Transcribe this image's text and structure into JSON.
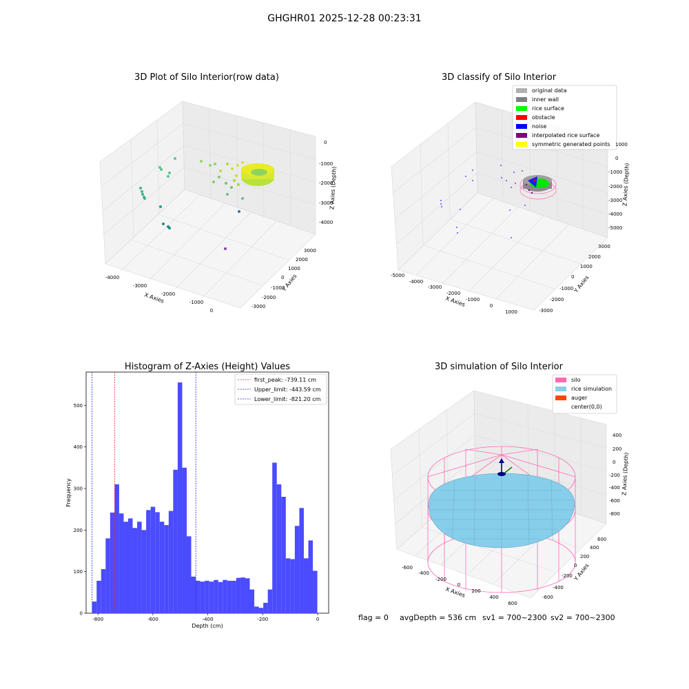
{
  "suptitle": "GHGHR01 2025-12-28 00:23:31",
  "footer": {
    "flag": "flag = 0",
    "avg": "avgDepth = 536 cm",
    "sv1": "sv1 = 700~2300",
    "sv2": "sv2 = 700~2300"
  },
  "colors": {
    "histogram": "#4b4bff",
    "first_peak": "#e02020",
    "limits": "#2020e0",
    "silo": "#ff69b4",
    "rice": "#87ceeb",
    "auger": "#ff4500"
  },
  "chart_data": [
    {
      "type": "scatter",
      "title": "3D Plot of Silo Interior(row data)",
      "xlabel": "X Axies",
      "ylabel": "Y Axies",
      "zlabel": "Z Axies (Depth)",
      "x_ticks": [
        "-4000",
        "-3000",
        "-2000",
        "-1000",
        "0"
      ],
      "y_ticks": [
        "-3000",
        "-2000",
        "-1000",
        "0",
        "1000",
        "2000",
        "3000"
      ],
      "z_ticks": [
        "0",
        "-1000",
        "-2000",
        "-3000",
        "-4000"
      ]
    },
    {
      "type": "scatter",
      "title": "3D classify of Silo Interior",
      "xlabel": "X Axies",
      "ylabel": "Y Axies",
      "zlabel": "Z Axies (Depth)",
      "x_ticks": [
        "-5000",
        "-4000",
        "-3000",
        "-2000",
        "-1000",
        "0",
        "1000"
      ],
      "y_ticks": [
        "-3000",
        "-2000",
        "-1000",
        "0",
        "1000",
        "2000",
        "3000"
      ],
      "z_ticks": [
        "1000",
        "0",
        "-1000",
        "-2000",
        "-3000",
        "-4000",
        "-5000"
      ],
      "legend": [
        {
          "label": "original data",
          "color": "#b0b0b0"
        },
        {
          "label": "inner wall",
          "color": "#808080"
        },
        {
          "label": "rice surface",
          "color": "#00ff00"
        },
        {
          "label": "obstacle",
          "color": "#ff0000"
        },
        {
          "label": "noise",
          "color": "#0000ff"
        },
        {
          "label": "interpolated rice surface",
          "color": "#800080"
        },
        {
          "label": "symmetric generated points",
          "color": "#ffff00"
        }
      ]
    },
    {
      "type": "bar",
      "title": "Histogram of Z-Axies (Height) Values",
      "xlabel": "Depth (cm)",
      "ylabel": "Frequency",
      "xlim": [
        -843,
        40
      ],
      "ylim": [
        0,
        580
      ],
      "x_ticks": [
        -800,
        -600,
        -400,
        -200,
        0
      ],
      "y_ticks": [
        0,
        100,
        200,
        300,
        400,
        500
      ],
      "bin_start": -821.2,
      "bin_width": 16.4,
      "values": [
        28,
        78,
        106,
        180,
        242,
        310,
        240,
        220,
        228,
        205,
        220,
        200,
        248,
        256,
        243,
        220,
        212,
        246,
        345,
        555,
        350,
        185,
        88,
        78,
        76,
        78,
        76,
        80,
        75,
        80,
        78,
        78,
        85,
        86,
        84,
        57,
        16,
        13,
        25,
        57,
        362,
        310,
        280,
        132,
        130,
        210,
        253,
        132,
        175,
        102
      ],
      "lines": [
        {
          "label": "first_peak: -739.11 cm",
          "x": -739.11,
          "color": "#e02020"
        },
        {
          "label": "Upper_limit: -443.59 cm",
          "x": -443.59,
          "color": "#2020e0"
        },
        {
          "label": "Lower_limit: -821.20 cm",
          "x": -821.2,
          "color": "#2020e0"
        }
      ]
    },
    {
      "type": "area",
      "title": "3D simulation of Silo Interior",
      "xlabel": "X Axies",
      "ylabel": "Y Axies",
      "zlabel": "Z Axies (Depth)",
      "x_ticks": [
        "-600",
        "-400",
        "-200",
        "0",
        "200",
        "400",
        "600"
      ],
      "y_ticks": [
        "-600",
        "-400",
        "-200",
        "0",
        "200",
        "400",
        "600"
      ],
      "z_ticks": [
        "400",
        "200",
        "0",
        "-200",
        "-400",
        "-600",
        "-800"
      ],
      "legend": [
        {
          "label": "silo",
          "color": "#ff69b4"
        },
        {
          "label": "rice simulation",
          "color": "#87ceeb"
        },
        {
          "label": "auger",
          "color": "#ff4500"
        },
        {
          "label": "center(0,0)",
          "color": ""
        }
      ]
    }
  ]
}
